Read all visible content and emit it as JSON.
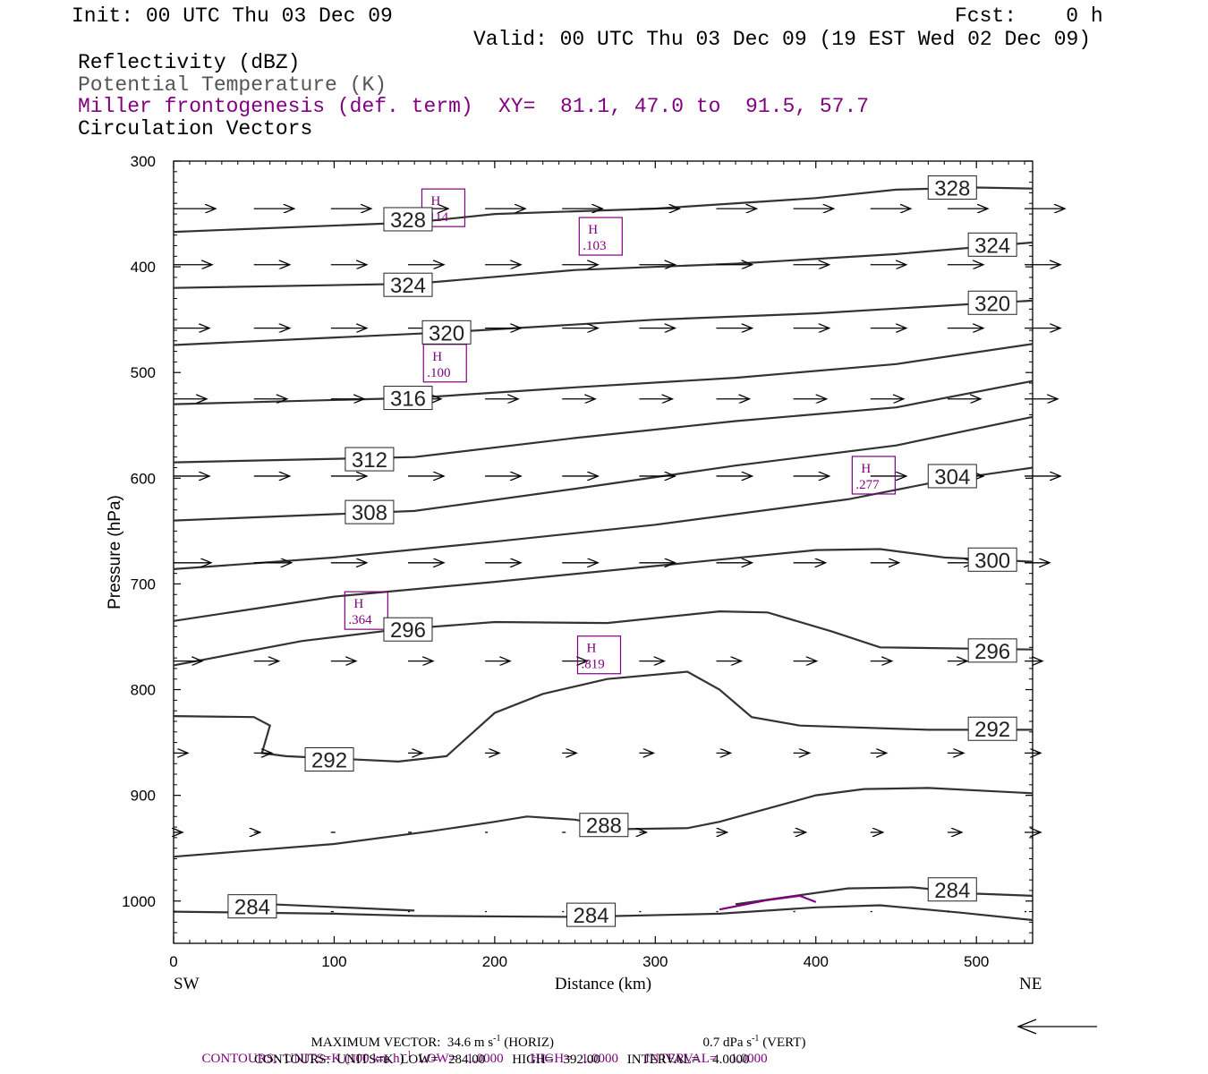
{
  "header": {
    "init": "Init: 00 UTC Thu 03 Dec 09",
    "fcst": "Fcst:    0 h",
    "valid": "Valid: 00 UTC Thu 03 Dec 09 (19 EST Wed 02 Dec 09)",
    "field1": "Reflectivity (dBZ)",
    "field2": "Potential Temperature (K)",
    "field3": "Miller frontogenesis (def. term)",
    "xy": "XY=  81.1, 47.0 to  91.5, 57.7",
    "field4": "Circulation Vectors"
  },
  "colors": {
    "purple": "#800080",
    "theta": "#333333",
    "vector": "#000000"
  },
  "chart_data": {
    "type": "cross-section",
    "xlabel": "Distance (km)",
    "ylabel": "Pressure (hPa)",
    "xlim": [
      0,
      535
    ],
    "ylim": [
      300,
      1040
    ],
    "y_inverted": true,
    "xticks": [
      0,
      100,
      200,
      300,
      400,
      500
    ],
    "yticks": [
      300,
      400,
      500,
      600,
      700,
      800,
      900,
      1000
    ],
    "left_end_label": "SW",
    "right_end_label": "NE",
    "theta_contours": [
      {
        "level": 328,
        "points": [
          [
            0,
            367
          ],
          [
            150,
            358
          ],
          [
            200,
            350
          ],
          [
            300,
            345
          ],
          [
            400,
            335
          ],
          [
            450,
            327
          ],
          [
            500,
            325
          ],
          [
            535,
            326
          ]
        ],
        "labels": [
          {
            "text": "328",
            "x": 146,
            "p": 355
          },
          {
            "text": "328",
            "x": 485,
            "p": 325
          }
        ]
      },
      {
        "level": 324,
        "points": [
          [
            0,
            420
          ],
          [
            150,
            416
          ],
          [
            250,
            403
          ],
          [
            350,
            397
          ],
          [
            450,
            388
          ],
          [
            535,
            377
          ]
        ],
        "labels": [
          {
            "text": "324",
            "x": 146,
            "p": 417
          },
          {
            "text": "324",
            "x": 510,
            "p": 379
          }
        ]
      },
      {
        "level": 320,
        "points": [
          [
            0,
            474
          ],
          [
            170,
            462
          ],
          [
            300,
            450
          ],
          [
            400,
            444
          ],
          [
            500,
            435
          ],
          [
            535,
            432
          ]
        ],
        "labels": [
          {
            "text": "320",
            "x": 170,
            "p": 462
          },
          {
            "text": "320",
            "x": 510,
            "p": 434
          }
        ]
      },
      {
        "level": 316,
        "points": [
          [
            0,
            530
          ],
          [
            150,
            524
          ],
          [
            250,
            514
          ],
          [
            350,
            505
          ],
          [
            450,
            492
          ],
          [
            535,
            473
          ]
        ],
        "labels": [
          {
            "text": "316",
            "x": 146,
            "p": 524
          }
        ]
      },
      {
        "level": 312,
        "points": [
          [
            0,
            585
          ],
          [
            150,
            580
          ],
          [
            250,
            562
          ],
          [
            350,
            546
          ],
          [
            450,
            533
          ],
          [
            535,
            508
          ]
        ],
        "labels": [
          {
            "text": "312",
            "x": 122,
            "p": 582
          }
        ]
      },
      {
        "level": 308,
        "points": [
          [
            0,
            640
          ],
          [
            150,
            631
          ],
          [
            250,
            610
          ],
          [
            350,
            588
          ],
          [
            450,
            569
          ],
          [
            535,
            542
          ]
        ],
        "labels": [
          {
            "text": "308",
            "x": 122,
            "p": 632
          }
        ]
      },
      {
        "level": 304,
        "points": [
          [
            0,
            686
          ],
          [
            100,
            675
          ],
          [
            200,
            660
          ],
          [
            300,
            644
          ],
          [
            420,
            620
          ],
          [
            480,
            602
          ],
          [
            535,
            590
          ]
        ],
        "labels": [
          {
            "text": "304",
            "x": 485,
            "p": 598
          }
        ]
      },
      {
        "level": 300,
        "points": [
          [
            0,
            735
          ],
          [
            100,
            712
          ],
          [
            200,
            698
          ],
          [
            300,
            683
          ],
          [
            400,
            668
          ],
          [
            440,
            667
          ],
          [
            480,
            675
          ],
          [
            535,
            679
          ]
        ],
        "labels": [
          {
            "text": "300",
            "x": 510,
            "p": 677
          }
        ]
      },
      {
        "level": 296,
        "points": [
          [
            0,
            777
          ],
          [
            80,
            754
          ],
          [
            140,
            743
          ],
          [
            200,
            736
          ],
          [
            270,
            737
          ],
          [
            340,
            726
          ],
          [
            370,
            727
          ],
          [
            410,
            745
          ],
          [
            440,
            760
          ],
          [
            535,
            762
          ]
        ],
        "labels": [
          {
            "text": "296",
            "x": 146,
            "p": 743
          },
          {
            "text": "296",
            "x": 510,
            "p": 763
          }
        ]
      },
      {
        "level": 292,
        "points": [
          [
            0,
            825
          ],
          [
            50,
            826
          ],
          [
            60,
            834
          ],
          [
            55,
            860
          ],
          [
            70,
            863
          ],
          [
            140,
            868
          ],
          [
            170,
            863
          ],
          [
            200,
            822
          ],
          [
            230,
            804
          ],
          [
            270,
            790
          ],
          [
            320,
            783
          ],
          [
            340,
            800
          ],
          [
            360,
            826
          ],
          [
            390,
            834
          ],
          [
            470,
            838
          ],
          [
            535,
            838
          ]
        ],
        "labels": [
          {
            "text": "292",
            "x": 97,
            "p": 866
          },
          {
            "text": "292",
            "x": 510,
            "p": 837
          }
        ]
      },
      {
        "level": 288,
        "points": [
          [
            0,
            958
          ],
          [
            100,
            946
          ],
          [
            160,
            934
          ],
          [
            200,
            925
          ],
          [
            220,
            920
          ],
          [
            250,
            923
          ],
          [
            280,
            932
          ],
          [
            320,
            931
          ],
          [
            340,
            925
          ],
          [
            400,
            900
          ],
          [
            430,
            894
          ],
          [
            470,
            893
          ],
          [
            535,
            898
          ]
        ],
        "labels": [
          {
            "text": "288",
            "x": 268,
            "p": 928
          }
        ]
      },
      {
        "level": 284,
        "points": [
          [
            0,
            1010
          ],
          [
            100,
            1012
          ],
          [
            150,
            1014
          ],
          [
            250,
            1015
          ],
          [
            340,
            1012
          ],
          [
            400,
            1006
          ],
          [
            440,
            1004
          ],
          [
            490,
            1011
          ],
          [
            535,
            1018
          ]
        ],
        "labels": [
          {
            "text": "284",
            "x": 49,
            "p": 1005
          },
          {
            "text": "284",
            "x": 260,
            "p": 1013
          }
        ]
      },
      {
        "level": 284,
        "points": [
          [
            60,
            1003
          ],
          [
            150,
            1009
          ]
        ],
        "labels": []
      },
      {
        "level": 284,
        "points": [
          [
            350,
            1003
          ],
          [
            420,
            988
          ],
          [
            460,
            987
          ],
          [
            500,
            993
          ],
          [
            535,
            995
          ]
        ],
        "labels": [
          {
            "text": "284",
            "x": 485,
            "p": 989
          }
        ]
      }
    ],
    "frontogenesis_contours": [
      {
        "points": [
          [
            340,
            1008
          ],
          [
            370,
            999
          ],
          [
            390,
            995
          ],
          [
            400,
            1001
          ]
        ]
      }
    ],
    "maxima": [
      {
        "symbol": "H",
        "value": ".114",
        "x": 168,
        "p": 345
      },
      {
        "symbol": "H",
        "value": ".103",
        "x": 266,
        "p": 372
      },
      {
        "symbol": "H",
        "value": ".100",
        "x": 169,
        "p": 492
      },
      {
        "symbol": "H",
        "value": ".277",
        "x": 436,
        "p": 598
      },
      {
        "symbol": "H",
        "value": ".364",
        "x": 120,
        "p": 726
      },
      {
        "symbol": "H",
        "value": ".819",
        "x": 265,
        "p": 768
      }
    ],
    "vectors": [
      {
        "p": 345,
        "x": [
          0,
          50,
          98,
          146,
          194,
          242,
          290,
          338,
          386,
          434,
          482,
          530
        ],
        "u": [
          47,
          45,
          45,
          45,
          45,
          45,
          45,
          45,
          45,
          45,
          45,
          45
        ],
        "w": [
          0,
          0,
          0,
          0,
          0,
          0,
          0,
          0,
          0,
          0,
          0,
          0
        ]
      },
      {
        "p": 398,
        "x": [
          0,
          50,
          98,
          146,
          194,
          242,
          290,
          338,
          386,
          434,
          482,
          530
        ],
        "u": [
          43,
          40,
          40,
          40,
          40,
          40,
          40,
          40,
          40,
          40,
          40,
          40
        ],
        "w": [
          0,
          0,
          0,
          0,
          0,
          0,
          0,
          0,
          0,
          0,
          0,
          0
        ]
      },
      {
        "p": 458,
        "x": [
          0,
          50,
          98,
          146,
          194,
          242,
          290,
          338,
          386,
          434,
          482,
          530
        ],
        "u": [
          40,
          40,
          40,
          40,
          40,
          40,
          40,
          40,
          40,
          40,
          40,
          40
        ],
        "w": [
          0,
          0,
          0,
          0,
          0,
          0,
          0,
          0,
          0,
          0,
          0,
          0
        ]
      },
      {
        "p": 525,
        "x": [
          0,
          50,
          98,
          146,
          194,
          242,
          290,
          338,
          386,
          434,
          482,
          530
        ],
        "u": [
          37,
          37,
          37,
          37,
          37,
          37,
          37,
          37,
          37,
          37,
          37,
          37
        ],
        "w": [
          0,
          0,
          0,
          0,
          0,
          0,
          0,
          0,
          0,
          0,
          0,
          0
        ]
      },
      {
        "p": 598,
        "x": [
          0,
          50,
          98,
          146,
          194,
          242,
          290,
          338,
          386,
          434,
          482,
          530
        ],
        "u": [
          40,
          40,
          40,
          40,
          40,
          40,
          40,
          40,
          40,
          40,
          40,
          40
        ],
        "w": [
          0,
          0,
          0,
          0,
          0,
          0,
          0,
          0,
          0,
          0,
          0,
          0
        ]
      },
      {
        "p": 680,
        "x": [
          0,
          50,
          98,
          146,
          194,
          242,
          290,
          338,
          386,
          434,
          482,
          530
        ],
        "u": [
          42,
          42,
          40,
          40,
          40,
          40,
          40,
          40,
          36,
          32,
          30,
          28
        ],
        "w": [
          0,
          0,
          0,
          0,
          0,
          0,
          0,
          0,
          0,
          0,
          0,
          0
        ]
      },
      {
        "p": 773,
        "x": [
          0,
          50,
          98,
          146,
          194,
          242,
          290,
          338,
          386,
          434,
          482,
          530
        ],
        "u": [
          32,
          28,
          28,
          28,
          28,
          28,
          28,
          28,
          26,
          24,
          22,
          20
        ],
        "w": [
          0,
          0,
          0,
          0,
          0,
          0,
          0,
          0,
          0,
          0,
          0,
          0
        ]
      },
      {
        "p": 860,
        "x": [
          0,
          50,
          98,
          146,
          194,
          242,
          290,
          338,
          386,
          434,
          482,
          530
        ],
        "u": [
          16,
          20,
          18,
          16,
          16,
          16,
          16,
          16,
          18,
          18,
          18,
          18
        ],
        "w": [
          0,
          0,
          0,
          0,
          0,
          0,
          0,
          0,
          0,
          0,
          0,
          0
        ]
      },
      {
        "p": 935,
        "x": [
          0,
          50,
          98,
          146,
          194,
          242,
          290,
          338,
          386,
          434,
          482,
          530
        ],
        "u": [
          10,
          7,
          5,
          4,
          3,
          4,
          8,
          12,
          14,
          14,
          16,
          18
        ],
        "w": [
          0,
          0,
          0,
          0,
          0,
          0,
          0,
          0,
          0,
          0,
          0,
          0
        ]
      },
      {
        "p": 1010,
        "x": [
          0,
          50,
          98,
          146,
          194,
          242,
          290,
          338,
          386,
          434,
          482,
          530
        ],
        "u": [
          2,
          2,
          3,
          2,
          2,
          2,
          2,
          2,
          2,
          2,
          2,
          2
        ],
        "w": [
          0,
          0,
          0,
          0,
          0,
          0,
          0,
          0,
          0,
          0,
          0,
          0
        ]
      }
    ]
  },
  "footer": {
    "max_vector": "MAXIMUM VECTOR:  34.6 m s",
    "max_vector_exp": "-1",
    "max_vector_horiz": " (HORIZ)",
    "max_vector_vert": "0.7 dPa s",
    "max_vector_vert_exp": "-1",
    "max_vector_vert_tail": " (VERT)",
    "contours1_a": "CONTOURS:  UNITS=K (100 km h)",
    "contours1_exp": "-1",
    "contours1_b": "  LOW=   1.0000        HIGH=   1.0000        INTERVAL=    1.0000",
    "contours2": "CONTOURS:  UNITS=K  LOW=   284.00        HIGH=   392.00        INTERVAL=    4.0000"
  }
}
